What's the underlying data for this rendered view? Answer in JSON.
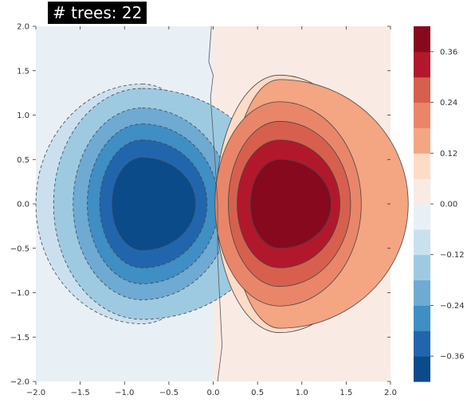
{
  "chart_data": {
    "type": "contour",
    "title": "# trees: 22",
    "xlim": [
      -2.0,
      2.0
    ],
    "ylim": [
      -2.0,
      2.0
    ],
    "x_ticks": [
      "−2.0",
      "−1.5",
      "−1.0",
      "−0.5",
      "0.0",
      "0.5",
      "1.0",
      "1.5",
      "2.0"
    ],
    "y_ticks": [
      "2.0",
      "1.5",
      "1.0",
      "0.5",
      "0.0",
      "−0.5",
      "−1.0",
      "−1.5",
      "−2.0"
    ],
    "grid": false,
    "colormap": "RdBu_r",
    "levels": [
      -0.42,
      -0.36,
      -0.3,
      -0.24,
      -0.18,
      -0.12,
      -0.06,
      0.0,
      0.06,
      0.12,
      0.18,
      0.24,
      0.3,
      0.36,
      0.42
    ],
    "level_colors": [
      "#0b4b8a",
      "#2166ac",
      "#3f8ec4",
      "#6eaad2",
      "#9ecae1",
      "#cbe0ef",
      "#e8f0f5",
      "#f9ebe3",
      "#fddbc7",
      "#f4a582",
      "#e9866a",
      "#d6604d",
      "#b2182b",
      "#87091e"
    ],
    "colorbar_ticks": [
      "0.36",
      "0.24",
      "0.12",
      "0.00",
      "−0.12",
      "−0.24",
      "−0.36"
    ],
    "colorbar_tick_values": [
      0.36,
      0.24,
      0.12,
      0.0,
      -0.12,
      -0.24,
      -0.36
    ],
    "regions": [
      {
        "name": "negative-lobe",
        "cx": -0.8,
        "cy": 0.0,
        "peak": -0.4,
        "radii": [
          [
            1.9,
            1.6,
            1.35
          ],
          [
            1.0,
            1.5,
            1.3
          ],
          [
            0.78,
            1.0,
            1.08
          ],
          [
            0.62,
            0.86,
            0.9
          ],
          [
            0.48,
            0.73,
            0.72
          ],
          [
            0.34,
            0.6,
            0.52
          ]
        ]
      },
      {
        "name": "positive-lobe",
        "cx": 0.75,
        "cy": 0.0,
        "peak": 0.4,
        "radii": [
          [
            1.95,
            1.4,
            1.85
          ],
          [
            0.55,
            1.45,
            1.4
          ],
          [
            0.73,
            0.92,
            1.15
          ],
          [
            0.58,
            0.8,
            0.93
          ],
          [
            0.48,
            0.68,
            0.72
          ],
          [
            0.33,
            0.58,
            0.5
          ]
        ]
      }
    ]
  }
}
